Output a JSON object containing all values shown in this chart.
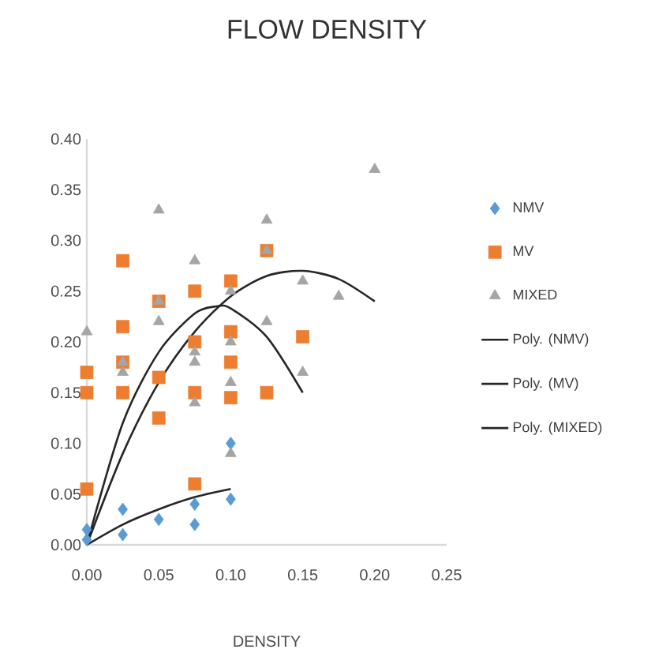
{
  "chart_data": {
    "type": "scatter",
    "title": "FLOW DENSITY",
    "xlabel": "DENSITY",
    "xlim": [
      0,
      0.25
    ],
    "ylim": [
      0,
      0.4
    ],
    "xticks": [
      {
        "value": 0,
        "label": "0.00"
      },
      {
        "value": 0.05,
        "label": "0.05"
      },
      {
        "value": 0.1,
        "label": "0.10"
      },
      {
        "value": 0.15,
        "label": "0.15"
      },
      {
        "value": 0.2,
        "label": "0.20"
      },
      {
        "value": 0.25,
        "label": "0.25"
      }
    ],
    "yticks": [
      {
        "value": 0,
        "label": "0.00"
      },
      {
        "value": 0.05,
        "label": "0.05"
      },
      {
        "value": 0.1,
        "label": "0.10"
      },
      {
        "value": 0.15,
        "label": "0.15"
      },
      {
        "value": 0.2,
        "label": "0.20"
      },
      {
        "value": 0.25,
        "label": "0.25"
      },
      {
        "value": 0.3,
        "label": "0.30"
      },
      {
        "value": 0.35,
        "label": "0.35"
      },
      {
        "value": 0.4,
        "label": "0.40"
      }
    ],
    "grid": false,
    "legend": "right",
    "series": [
      {
        "name": "NMV",
        "color": "#5b9bd5",
        "marker": "diamond",
        "x": [
          0,
          0,
          0.025,
          0.025,
          0.05,
          0.075,
          0.075,
          0.1,
          0.1
        ],
        "values": [
          0.005,
          0.015,
          0.035,
          0.01,
          0.025,
          0.04,
          0.02,
          0.1,
          0.045
        ]
      },
      {
        "name": "MV",
        "color": "#ed7d31",
        "marker": "square",
        "x": [
          0,
          0,
          0,
          0.025,
          0.025,
          0.025,
          0.025,
          0.05,
          0.05,
          0.05,
          0.075,
          0.075,
          0.075,
          0.075,
          0.1,
          0.1,
          0.1,
          0.1,
          0.125,
          0.125,
          0.15
        ],
        "values": [
          0.055,
          0.15,
          0.17,
          0.28,
          0.215,
          0.18,
          0.15,
          0.24,
          0.165,
          0.125,
          0.25,
          0.2,
          0.15,
          0.06,
          0.26,
          0.21,
          0.18,
          0.145,
          0.29,
          0.15,
          0.205
        ]
      },
      {
        "name": "MIXED",
        "color": "#a5a5a5",
        "marker": "triangle",
        "x": [
          0,
          0.025,
          0.025,
          0.05,
          0.05,
          0.05,
          0.075,
          0.075,
          0.075,
          0.075,
          0.1,
          0.1,
          0.1,
          0.1,
          0.125,
          0.125,
          0.125,
          0.15,
          0.15,
          0.175,
          0.2
        ],
        "values": [
          0.21,
          0.17,
          0.18,
          0.33,
          0.24,
          0.22,
          0.28,
          0.19,
          0.14,
          0.18,
          0.25,
          0.2,
          0.16,
          0.09,
          0.32,
          0.29,
          0.22,
          0.26,
          0.17,
          0.245,
          0.37
        ]
      },
      {
        "name": "Poly. (NMV)",
        "type": "line",
        "color": "#262626",
        "marker": "none",
        "x": [
          0,
          0.025,
          0.05,
          0.075,
          0.1
        ],
        "values": [
          0,
          0.02,
          0.035,
          0.047,
          0.055
        ]
      },
      {
        "name": "Poly. (MV)",
        "type": "line",
        "color": "#262626",
        "marker": "none",
        "x": [
          0,
          0.025,
          0.05,
          0.075,
          0.09,
          0.1,
          0.125,
          0.15
        ],
        "values": [
          0,
          0.12,
          0.19,
          0.228,
          0.235,
          0.233,
          0.205,
          0.15
        ]
      },
      {
        "name": "Poly. (MIXED)",
        "type": "line",
        "color": "#262626",
        "marker": "none",
        "x": [
          0,
          0.025,
          0.05,
          0.075,
          0.1,
          0.125,
          0.15,
          0.175,
          0.2
        ],
        "values": [
          0,
          0.09,
          0.16,
          0.21,
          0.245,
          0.265,
          0.27,
          0.262,
          0.24
        ]
      }
    ]
  }
}
